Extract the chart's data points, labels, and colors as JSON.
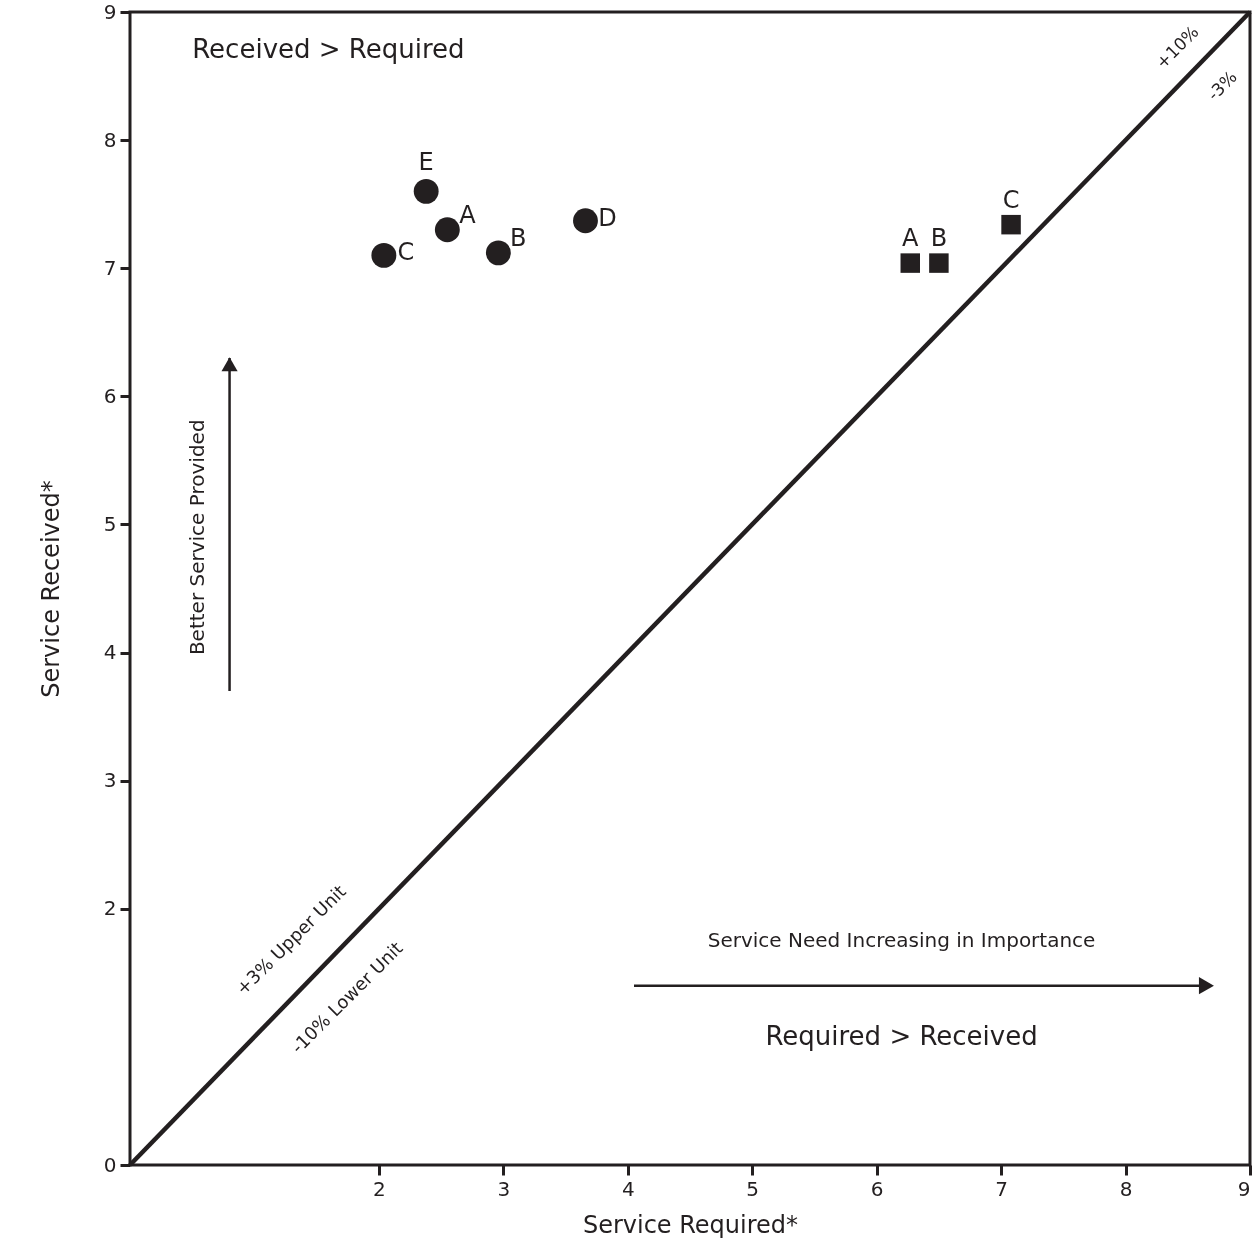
{
  "chart_data": {
    "type": "scatter",
    "xlabel": "Service Required*",
    "ylabel": "Service Received*",
    "xlim": [
      0,
      9
    ],
    "ylim": [
      0,
      9
    ],
    "xticks": [
      2,
      3,
      4,
      5,
      6,
      7,
      8,
      9
    ],
    "yticks": [
      0,
      2,
      3,
      4,
      5,
      6,
      7,
      8,
      9
    ],
    "grid": false,
    "series": [
      {
        "marker": "circle",
        "color": "#231f20",
        "x": [
          2.38,
          2.55,
          2.04,
          2.96,
          3.66
        ],
        "values": [
          7.6,
          7.3,
          7.1,
          7.12,
          7.37
        ]
      },
      {
        "marker": "square",
        "color": "#231f20",
        "x": [
          6.27,
          6.5,
          7.08
        ],
        "values": [
          7.04,
          7.04,
          7.34
        ]
      },
      {
        "type": "line",
        "marker": "none",
        "line_style": "solid",
        "color": "#231f20",
        "x": [
          0,
          9
        ],
        "values": [
          0,
          9
        ]
      }
    ],
    "annotations": [
      "Received > Required",
      "+10%",
      "-3%",
      "+3% Upper Unit",
      "-10% Lower Unit",
      "Better Service Provided",
      "Service Need Increasing in Importance",
      "Required > Received",
      {
        "text": "E",
        "x": 2.38,
        "y": 7.6
      },
      {
        "text": "A",
        "x": 2.55,
        "y": 7.3
      },
      {
        "text": "C",
        "x": 2.04,
        "y": 7.1
      },
      {
        "text": "B",
        "x": 2.96,
        "y": 7.12
      },
      {
        "text": "D",
        "x": 3.66,
        "y": 7.37
      },
      {
        "text": "A",
        "x": 6.27,
        "y": 7.04
      },
      {
        "text": "B",
        "x": 6.5,
        "y": 7.04
      },
      {
        "text": "C",
        "x": 7.08,
        "y": 7.34
      }
    ]
  }
}
